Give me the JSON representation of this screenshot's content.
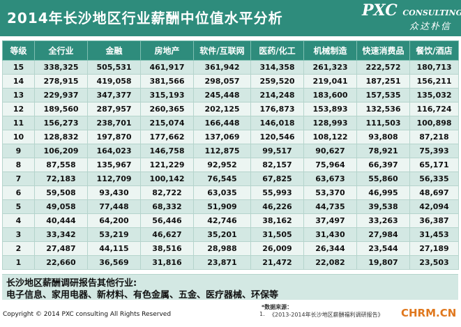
{
  "header": {
    "title": "2014年长沙地区行业薪酬中位值水平分析",
    "logo_main": "PXC",
    "logo_sub": "CONSULTING",
    "logo_cn": "众达朴信"
  },
  "table": {
    "columns": [
      "等级",
      "全行业",
      "金融",
      "房地产",
      "软件/互联网",
      "医药/化工",
      "机械制造",
      "快速消费品",
      "餐饮/酒店"
    ],
    "rows": [
      [
        "15",
        "338,325",
        "505,531",
        "461,917",
        "361,942",
        "314,358",
        "261,323",
        "222,572",
        "180,713"
      ],
      [
        "14",
        "278,915",
        "419,058",
        "381,566",
        "298,057",
        "259,520",
        "219,041",
        "187,251",
        "156,211"
      ],
      [
        "13",
        "229,937",
        "347,377",
        "315,193",
        "245,448",
        "214,248",
        "183,600",
        "157,535",
        "135,032"
      ],
      [
        "12",
        "189,560",
        "287,957",
        "260,365",
        "202,125",
        "176,873",
        "153,893",
        "132,536",
        "116,724"
      ],
      [
        "11",
        "156,273",
        "238,701",
        "215,074",
        "166,448",
        "146,018",
        "128,993",
        "111,503",
        "100,898"
      ],
      [
        "10",
        "128,832",
        "197,870",
        "177,662",
        "137,069",
        "120,546",
        "108,122",
        "93,808",
        "87,218"
      ],
      [
        "9",
        "106,209",
        "164,023",
        "146,758",
        "112,875",
        "99,517",
        "90,627",
        "78,921",
        "75,393"
      ],
      [
        "8",
        "87,558",
        "135,967",
        "121,229",
        "92,952",
        "82,157",
        "75,964",
        "66,397",
        "65,171"
      ],
      [
        "7",
        "72,183",
        "112,709",
        "100,142",
        "76,545",
        "67,825",
        "63,673",
        "55,860",
        "56,335"
      ],
      [
        "6",
        "59,508",
        "93,430",
        "82,722",
        "63,035",
        "55,993",
        "53,370",
        "46,995",
        "48,697"
      ],
      [
        "5",
        "49,058",
        "77,448",
        "68,332",
        "51,909",
        "46,226",
        "44,735",
        "39,538",
        "42,094"
      ],
      [
        "4",
        "40,444",
        "64,200",
        "56,446",
        "42,746",
        "38,162",
        "37,497",
        "33,263",
        "36,387"
      ],
      [
        "3",
        "33,342",
        "53,219",
        "46,627",
        "35,201",
        "31,505",
        "31,430",
        "27,984",
        "31,453"
      ],
      [
        "2",
        "27,487",
        "44,115",
        "38,516",
        "28,988",
        "26,009",
        "26,344",
        "23,544",
        "27,189"
      ],
      [
        "1",
        "22,660",
        "36,569",
        "31,816",
        "23,871",
        "21,472",
        "22,082",
        "19,807",
        "23,503"
      ]
    ]
  },
  "note": {
    "title": "长沙地区薪酬调研报告其他行业:",
    "industries": "电子信息、家用电器、新材料、有色金属、五金、医疗器械、环保等"
  },
  "footer": {
    "copyright": "Copyright © 2014 PXC consulting All Rights Reserved",
    "source_label": "*数据来源：",
    "source_number": "1.",
    "source_text": "《2013-2014年长沙地区薪酬福利调研报告》",
    "site_mark": "CHRM.CN"
  },
  "colors": {
    "header_bg": "#2e8c7c",
    "row_dark": "#d3e8e3",
    "row_light": "#ecf5f2",
    "site_mark": "#e0781e"
  }
}
